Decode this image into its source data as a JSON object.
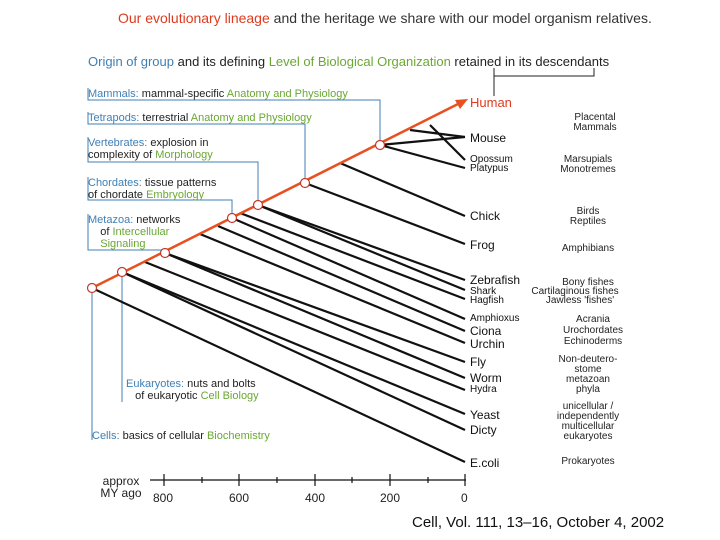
{
  "title": {
    "part1": "Our evolutionary lineage",
    "part2": " and the heritage we share with our model organism relatives."
  },
  "subtitle": {
    "part1": "Origin of group",
    "part2": " and its defining ",
    "part3": "Level of Biological Organization",
    "part4": " retained in its descendants"
  },
  "levels": [
    {
      "group": "Mammals:",
      "text": " mammal-specific ",
      "level": "Anatomy and Physiology"
    },
    {
      "group": "Tetrapods:",
      "text": " terrestrial ",
      "level": "Anatomy and Physiology"
    },
    {
      "group": "Vertebrates:",
      "text": " explosion in",
      "text2": "complexity of ",
      "level": "Morphology"
    },
    {
      "group": "Chordates:",
      "text": " tissue patterns",
      "text2": "of chordate ",
      "level": "Embryology"
    },
    {
      "group": "Metazoa:",
      "text": " networks",
      "text2": "of ",
      "level2": "Intercellular",
      "level": "Signaling"
    },
    {
      "group": "Eukaryotes:",
      "text": " nuts and bolts",
      "text2": "of eukaryotic ",
      "level": "Cell Biology"
    },
    {
      "group": "Cells:",
      "text": " basics of cellular ",
      "level": "Biochemistry"
    }
  ],
  "species": [
    "Human",
    "Mouse",
    "Opossum",
    "Platypus",
    "Chick",
    "Frog",
    "Zebrafish",
    "Shark",
    "Hagfish",
    "Amphioxus",
    "Ciona",
    "Urchin",
    "Fly",
    "Worm",
    "Hydra",
    "Yeast",
    "Dicty",
    "E.coli"
  ],
  "groups": [
    "Placental",
    "Mammals",
    "Marsupials",
    "Monotremes",
    "Birds",
    "Reptiles",
    "Amphibians",
    "Bony fishes",
    "Cartilaginous fishes",
    "Jawless 'fishes'",
    "Acrania",
    "Urochordates",
    "Echinoderms",
    "Non-deutero-",
    "stome",
    "metazoan",
    "phyla",
    "unicellular /",
    "independently",
    "multicellular",
    "eukaryotes",
    "Prokaryotes"
  ],
  "axis": {
    "label_line1": "approx",
    "label_line2": "MY ago",
    "ticks": [
      "800",
      "600",
      "400",
      "200",
      "0"
    ]
  },
  "citation": "Cell, Vol. 111, 13–16, October 4, 2002",
  "colors": {
    "lineage": "#e8501f",
    "blue": "#3f7fb5",
    "green": "#6aa832",
    "red": "#e03a1e"
  }
}
